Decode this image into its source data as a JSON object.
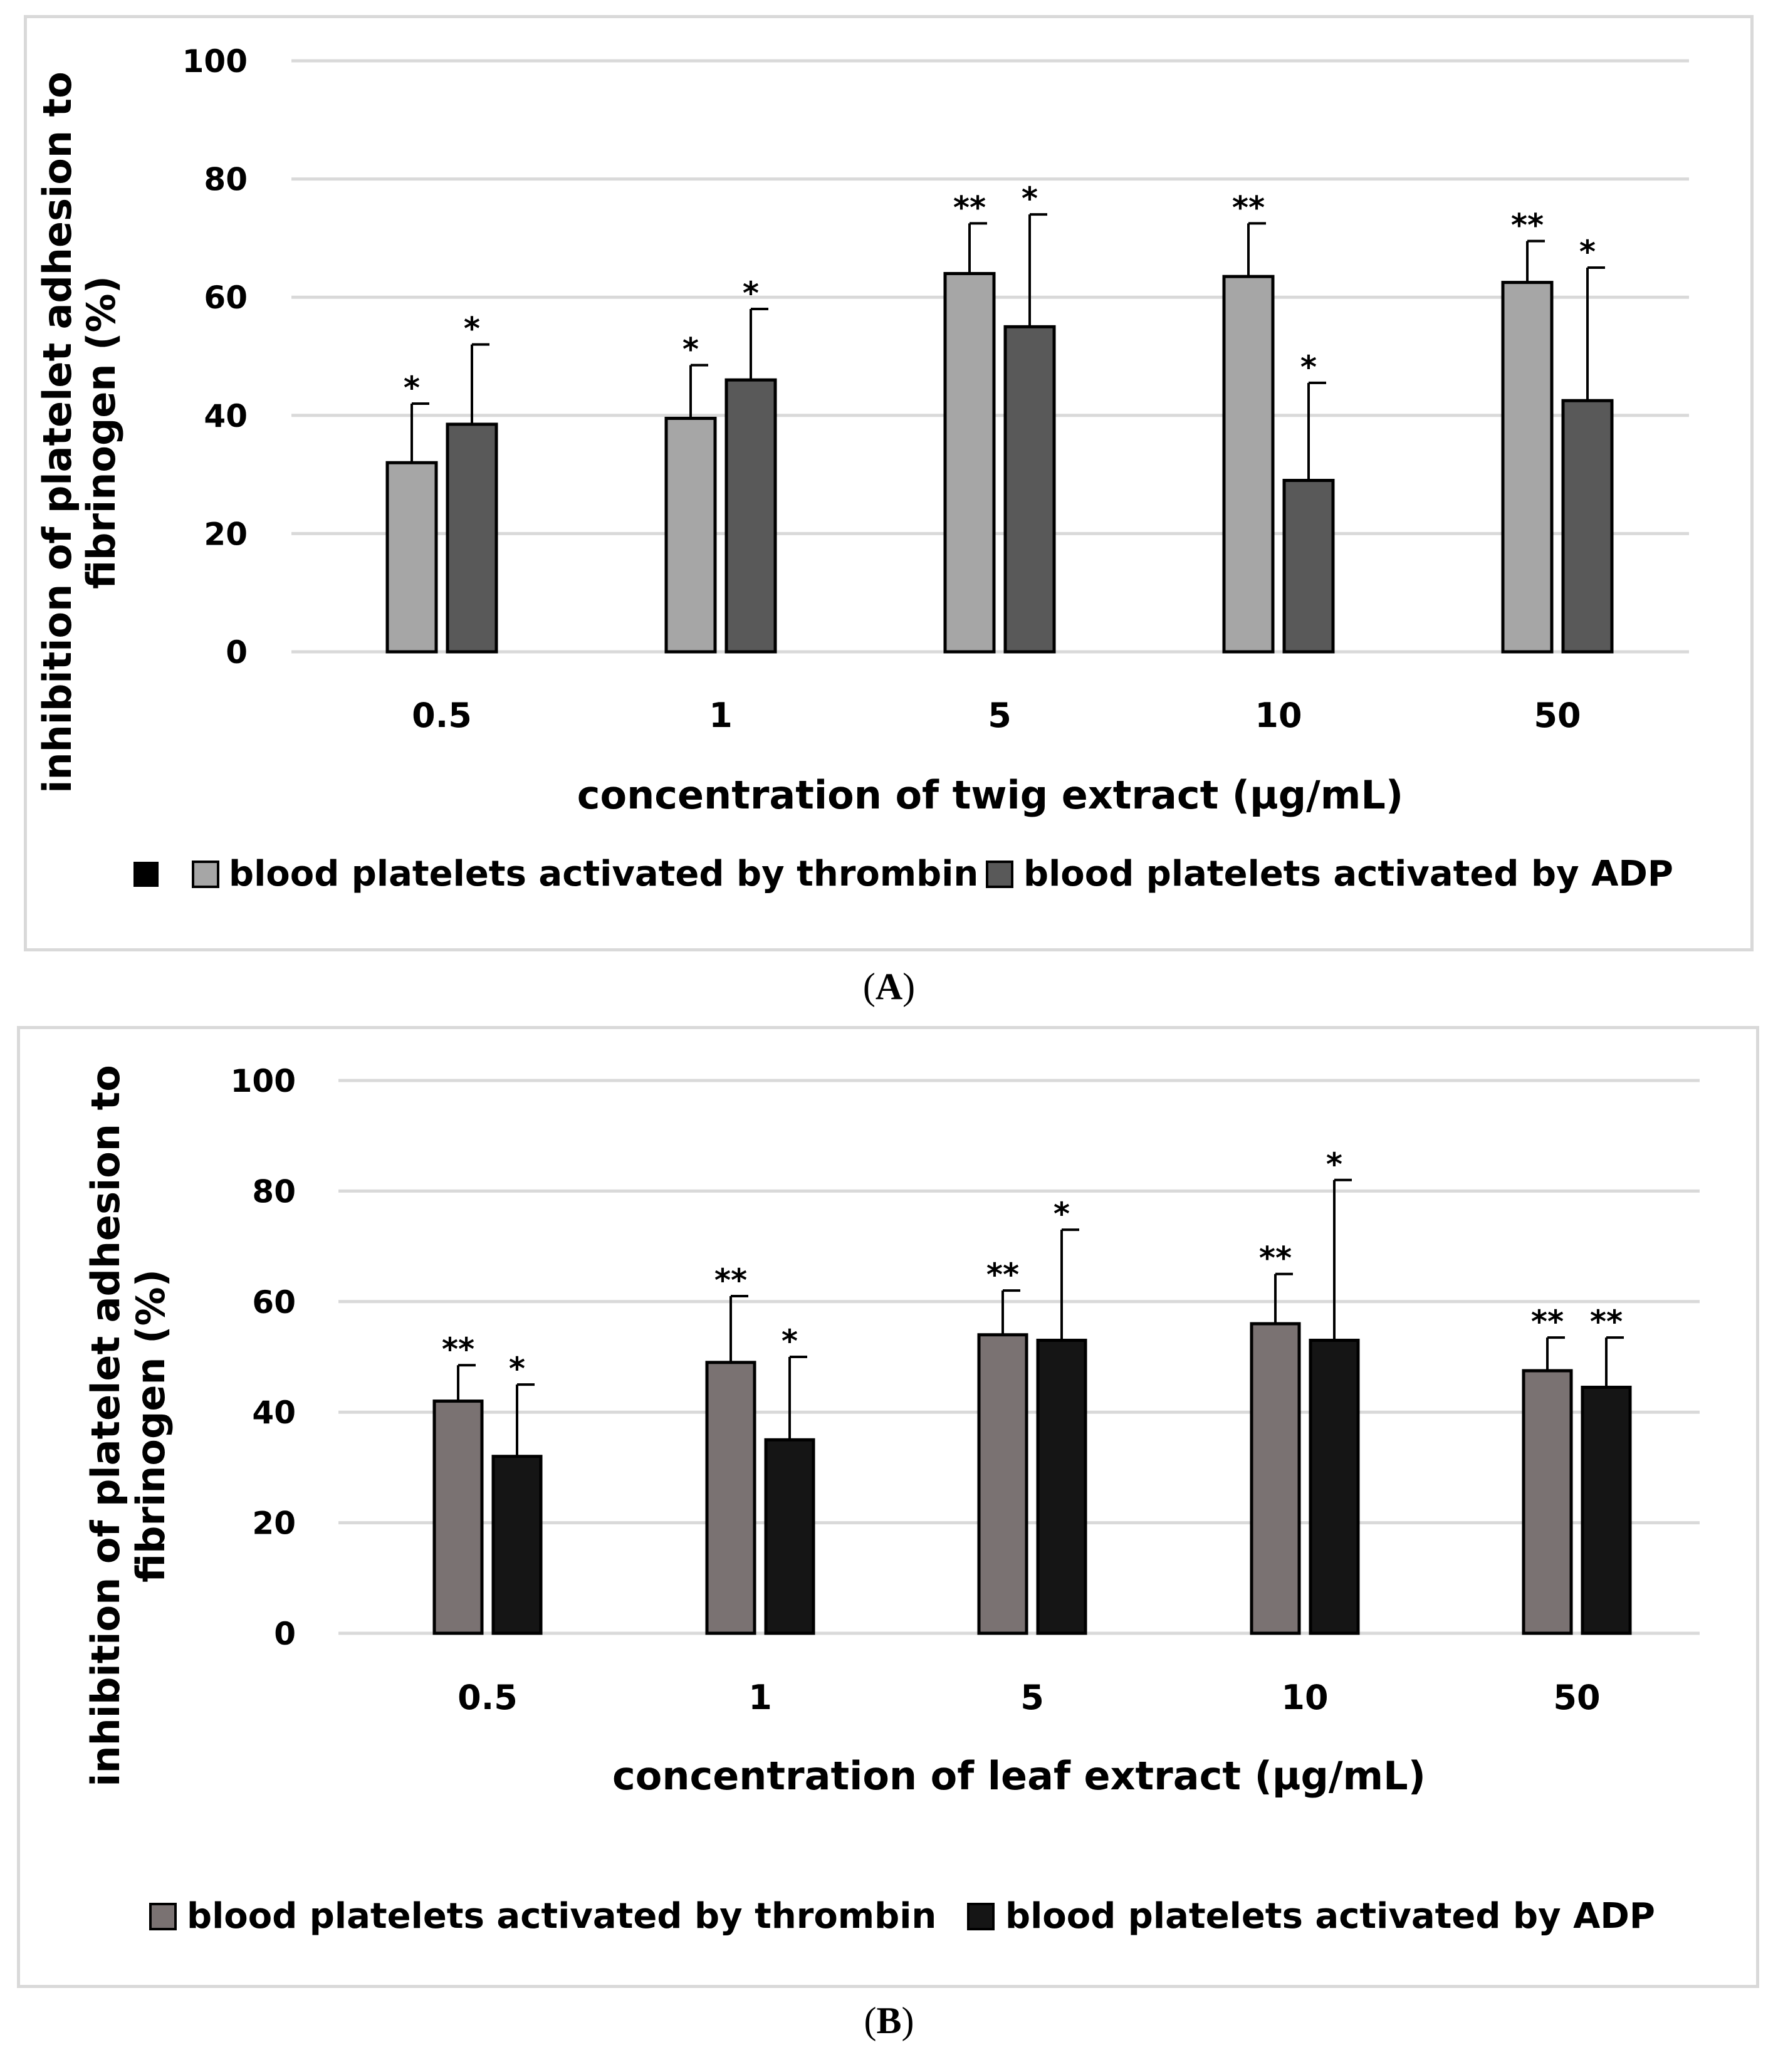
{
  "panels": [
    {
      "label": "A",
      "chart_data": {
        "type": "bar",
        "title": "",
        "xlabel": "concentration of twig extract (µg/mL)",
        "ylabel_line1": "inhibition of platelet adhesion to",
        "ylabel_line2": "fibrinogen (%)",
        "categories": [
          "0.5",
          "1",
          "5",
          "10",
          "50"
        ],
        "ylim": [
          0,
          100
        ],
        "yticks": [
          0,
          20,
          40,
          60,
          80,
          100
        ],
        "grid": true,
        "legend_position": "bottom",
        "series": [
          {
            "name": "blood platelets activated by thrombin",
            "color": "#a6a6a6",
            "values": [
              32,
              39.5,
              64,
              63.5,
              62.5
            ],
            "errors": [
              10,
              9,
              8.5,
              9,
              7
            ],
            "significance": [
              "*",
              "*",
              "**",
              "**",
              "**"
            ]
          },
          {
            "name": "blood platelets activated by ADP",
            "color": "#595959",
            "values": [
              38.5,
              46,
              55,
              29,
              42.5
            ],
            "errors": [
              13.5,
              12,
              19,
              16.5,
              22.5
            ],
            "significance": [
              "*",
              "*",
              "*",
              "*",
              "*"
            ]
          }
        ]
      }
    },
    {
      "label": "B",
      "chart_data": {
        "type": "bar",
        "title": "",
        "xlabel": "concentration of leaf extract (µg/mL)",
        "ylabel_line1": "inhibition of platelet adhesion to",
        "ylabel_line2": "fibrinogen (%)",
        "categories": [
          "0.5",
          "1",
          "5",
          "10",
          "50"
        ],
        "ylim": [
          0,
          100
        ],
        "yticks": [
          0,
          20,
          40,
          60,
          80,
          100
        ],
        "grid": true,
        "legend_position": "bottom",
        "series": [
          {
            "name": "blood platelets activated by thrombin",
            "color": "#7a7272",
            "values": [
              42,
              49,
              54,
              56,
              47.5
            ],
            "errors": [
              6.5,
              12,
              8,
              9,
              6
            ],
            "significance": [
              "**",
              "**",
              "**",
              "**",
              "**"
            ]
          },
          {
            "name": "blood platelets activated by ADP",
            "color": "#151515",
            "values": [
              32,
              35,
              53,
              53,
              44.5
            ],
            "errors": [
              13,
              15,
              20,
              29,
              9
            ],
            "significance": [
              "*",
              "*",
              "*",
              "*",
              "**"
            ]
          }
        ]
      }
    }
  ]
}
